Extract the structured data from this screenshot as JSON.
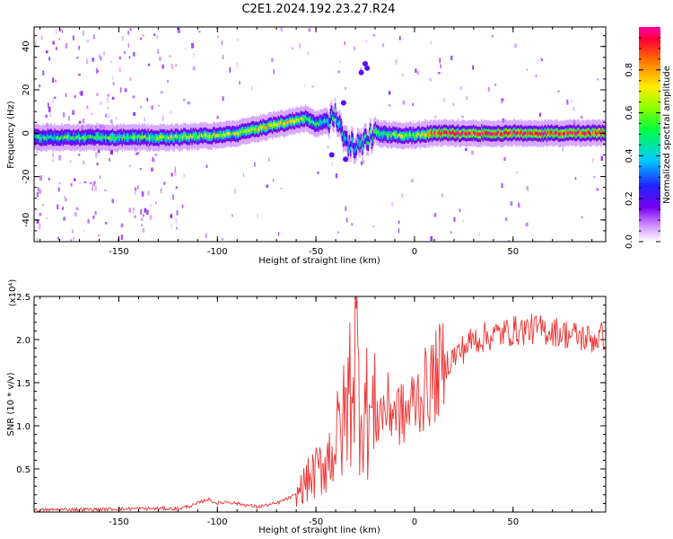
{
  "title": "C2E1.2024.192.23.27.R24",
  "chart_data": [
    {
      "type": "heatmap",
      "xlabel": "Height of straight line (km)",
      "ylabel": "Frequency (Hz)",
      "xlim": [
        -193,
        97
      ],
      "ylim": [
        -50,
        49
      ],
      "xticks": [
        -150,
        -100,
        -50,
        0,
        50
      ],
      "yticks": [
        -40,
        -20,
        0,
        20,
        40
      ],
      "colorbar": {
        "label": "Normalized spectral amplitude",
        "range": [
          0.0,
          1.0
        ],
        "ticks": [
          "0.0",
          "0.2",
          "0.4",
          "0.6",
          "0.8"
        ]
      },
      "ridge": {
        "x": [
          -193,
          -150,
          -125,
          -100,
          -90,
          -80,
          -70,
          -60,
          -55,
          -50,
          -45,
          -40,
          -35,
          -30,
          -25,
          -20,
          -10,
          0,
          10,
          50,
          97
        ],
        "freq": [
          -2,
          -2,
          -2,
          -1,
          0,
          2,
          4,
          6,
          7,
          4,
          6,
          8,
          -5,
          -6,
          -3,
          0,
          -1,
          -1,
          0,
          0,
          0
        ],
        "amplitude": [
          0.5,
          0.55,
          0.6,
          0.65,
          0.6,
          0.75,
          0.75,
          0.7,
          0.6,
          0.5,
          0.5,
          0.45,
          0.4,
          0.45,
          0.5,
          0.55,
          0.6,
          0.65,
          0.9,
          0.95,
          0.9
        ]
      }
    },
    {
      "type": "line",
      "xlabel": "Height of straight line (km)",
      "ylabel": "SNR (10 * v/v)",
      "y_scale_note": "(x10⁴)",
      "xlim": [
        -193,
        97
      ],
      "ylim": [
        0,
        2.5
      ],
      "xticks": [
        -150,
        -100,
        -50,
        0,
        50
      ],
      "yticks": [
        0.5,
        1.0,
        1.5,
        2.0,
        2.5
      ],
      "color": "#ee3333",
      "series": [
        {
          "x": [
            -193,
            -180,
            -160,
            -140,
            -120,
            -112,
            -105,
            -100,
            -95,
            -90,
            -80,
            -70,
            -60,
            -55,
            -50,
            -45,
            -40,
            -35,
            -32,
            -30,
            -28,
            -25,
            -22,
            -20,
            -15,
            -10,
            -5,
            0,
            5,
            10,
            15,
            20,
            25,
            30,
            40,
            50,
            60,
            70,
            80,
            90,
            97
          ],
          "y": [
            0.02,
            0.03,
            0.03,
            0.04,
            0.04,
            0.08,
            0.15,
            0.1,
            0.12,
            0.1,
            0.06,
            0.1,
            0.2,
            0.35,
            0.45,
            0.6,
            0.8,
            1.1,
            1.6,
            1.9,
            1.4,
            1.2,
            1.1,
            1.1,
            1.2,
            1.2,
            1.1,
            1.3,
            1.4,
            1.55,
            1.7,
            1.8,
            1.9,
            2.0,
            2.05,
            2.1,
            2.12,
            2.1,
            2.05,
            2.0,
            2.05
          ]
        }
      ]
    }
  ]
}
